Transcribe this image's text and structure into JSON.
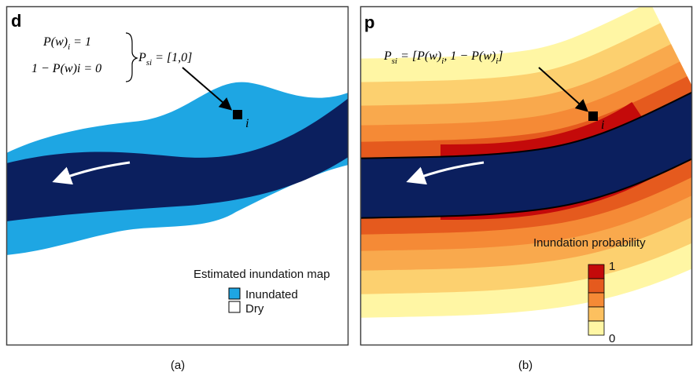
{
  "panel_a": {
    "letter": "d",
    "formula": {
      "line_1": [
        "P(w)",
        "i",
        " = 1"
      ],
      "line_2": "1 − P(w)i = 0",
      "vector": [
        "P",
        "si",
        " = [1,0]"
      ]
    },
    "point_label": "i",
    "legend": {
      "title": "Estimated inundation map",
      "items": [
        "Inundated",
        "Dry"
      ]
    },
    "caption": "(a)"
  },
  "panel_b": {
    "letter": "p",
    "formula": [
      "P",
      "si",
      " = [P(w)",
      "i",
      ", 1 − P(w)",
      "i",
      "]"
    ],
    "point_label": "i",
    "legend": {
      "title": "Inundation probability",
      "max": "1",
      "min": "0"
    },
    "caption": "(b)"
  }
}
